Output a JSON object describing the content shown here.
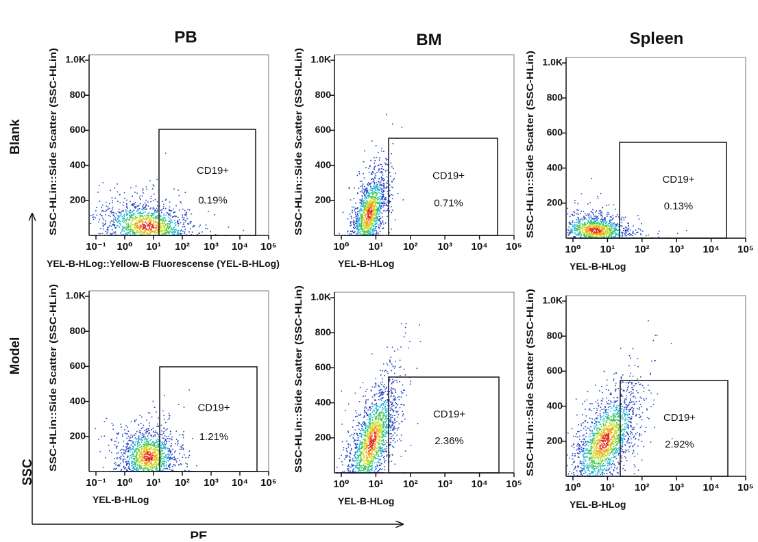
{
  "column_titles": [
    "PB",
    "BM",
    "Spleen"
  ],
  "row_labels": [
    "Blank",
    "Model"
  ],
  "y_axis_title": "SSC",
  "x_axis_title": "PE",
  "chart_data": [
    {
      "type": "scatter",
      "ylabel": "SSC-HLin::Side Scatter (SSC-HLin)",
      "xlabel": "YEL-B-HLog::Yellow-B Fluorescense (YEL-B-HLog)",
      "xlog": true,
      "xlim": [
        0.1,
        100000
      ],
      "xticks": [
        {
          "value": 0.1,
          "label": "10⁻¹"
        },
        {
          "value": 1,
          "label": "10⁰"
        },
        {
          "value": 10,
          "label": "10¹"
        },
        {
          "value": 100,
          "label": "10²"
        },
        {
          "value": 1000,
          "label": "10³"
        },
        {
          "value": 10000,
          "label": "10⁴"
        },
        {
          "value": 100000,
          "label": "10⁵"
        }
      ],
      "ylim": [
        0,
        1000
      ],
      "yticks": [
        200,
        400,
        600,
        800,
        {
          "value": 1000,
          "label": "1.0K"
        }
      ],
      "gate_label": "CD19+",
      "gate_value": 0.19,
      "gate_value_label": "0.19%"
    },
    {
      "type": "scatter",
      "ylabel": "SSC-HLin::Side Scatter (SSC-HLin)",
      "xlabel": "YEL-B-HLog",
      "xlog": true,
      "xlim": [
        1,
        100000
      ],
      "xticks": [
        {
          "value": 1,
          "label": "10⁰"
        },
        {
          "value": 10,
          "label": "10¹"
        },
        {
          "value": 100,
          "label": "10²"
        },
        {
          "value": 1000,
          "label": "10³"
        },
        {
          "value": 10000,
          "label": "10⁴"
        },
        {
          "value": 100000,
          "label": "10⁵"
        }
      ],
      "ylim": [
        0,
        1000
      ],
      "yticks": [
        200,
        400,
        600,
        800,
        {
          "value": 1000,
          "label": "1.0K"
        }
      ],
      "gate_label": "CD19+",
      "gate_value": 0.71,
      "gate_value_label": "0.71%"
    },
    {
      "type": "scatter",
      "ylabel": "SSC-HLin::Side Scatter (SSC-HLin)",
      "xlabel": "YEL-B-HLog",
      "xlog": true,
      "xlim": [
        1,
        100000
      ],
      "xticks": [
        {
          "value": 1,
          "label": "10⁰"
        },
        {
          "value": 10,
          "label": "10¹"
        },
        {
          "value": 100,
          "label": "10²"
        },
        {
          "value": 1000,
          "label": "10³"
        },
        {
          "value": 10000,
          "label": "10⁴"
        },
        {
          "value": 100000,
          "label": "10⁵"
        }
      ],
      "ylim": [
        0,
        1000
      ],
      "yticks": [
        200,
        400,
        600,
        800,
        {
          "value": 1000,
          "label": "1.0K"
        }
      ],
      "gate_label": "CD19+",
      "gate_value": 0.13,
      "gate_value_label": "0.13%"
    },
    {
      "type": "scatter",
      "ylabel": "SSC-HLin::Side Scatter (SSC-HLin)",
      "xlabel": "YEL-B-HLog",
      "xlog": true,
      "xlim": [
        0.1,
        100000
      ],
      "xticks": [
        {
          "value": 0.1,
          "label": "10⁻¹"
        },
        {
          "value": 1,
          "label": "10⁰"
        },
        {
          "value": 10,
          "label": "10¹"
        },
        {
          "value": 100,
          "label": "10²"
        },
        {
          "value": 1000,
          "label": "10³"
        },
        {
          "value": 10000,
          "label": "10⁴"
        },
        {
          "value": 100000,
          "label": "10⁵"
        }
      ],
      "ylim": [
        0,
        1000
      ],
      "yticks": [
        200,
        400,
        600,
        800,
        {
          "value": 1000,
          "label": "1.0K"
        }
      ],
      "gate_label": "CD19+",
      "gate_value": 1.21,
      "gate_value_label": "1.21%"
    },
    {
      "type": "scatter",
      "ylabel": "SSC-HLin::Side Scatter (SSC-HLin)",
      "xlabel": "YEL-B-HLog",
      "xlog": true,
      "xlim": [
        1,
        100000
      ],
      "xticks": [
        {
          "value": 1,
          "label": "10⁰"
        },
        {
          "value": 10,
          "label": "10¹"
        },
        {
          "value": 100,
          "label": "10²"
        },
        {
          "value": 1000,
          "label": "10³"
        },
        {
          "value": 10000,
          "label": "10⁴"
        },
        {
          "value": 100000,
          "label": "10⁵"
        }
      ],
      "ylim": [
        0,
        1000
      ],
      "yticks": [
        200,
        400,
        600,
        800,
        {
          "value": 1000,
          "label": "1.0K"
        }
      ],
      "gate_label": "CD19+",
      "gate_value": 2.36,
      "gate_value_label": "2.36%"
    },
    {
      "type": "scatter",
      "ylabel": "SSC-HLin::Side Scatter (SSC-HLin)",
      "xlabel": "YEL-B-HLog",
      "xlog": true,
      "xlim": [
        1,
        100000
      ],
      "xticks": [
        {
          "value": 1,
          "label": "10⁰"
        },
        {
          "value": 10,
          "label": "10¹"
        },
        {
          "value": 100,
          "label": "10²"
        },
        {
          "value": 1000,
          "label": "10³"
        },
        {
          "value": 10000,
          "label": "10⁴"
        },
        {
          "value": 100000,
          "label": "10⁵"
        }
      ],
      "ylim": [
        0,
        1000
      ],
      "yticks": [
        200,
        400,
        600,
        800,
        {
          "value": 1000,
          "label": "1.0K"
        }
      ],
      "gate_label": "CD19+",
      "gate_value": 2.92,
      "gate_value_label": "2.92%"
    }
  ]
}
